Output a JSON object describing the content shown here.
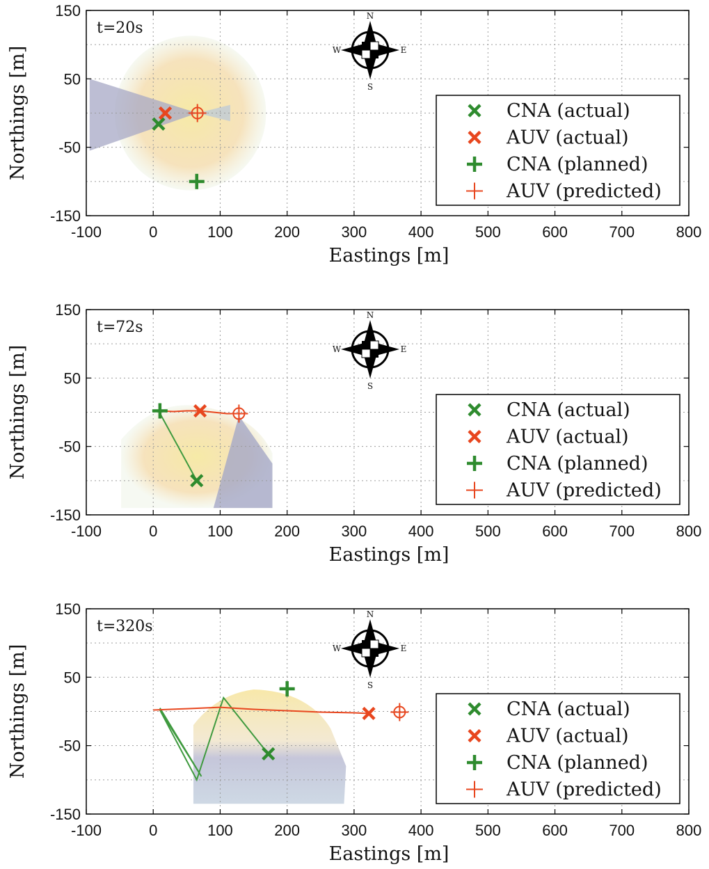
{
  "chart_data": [
    {
      "type": "scatter",
      "time_label": "t=20s",
      "xlabel": "Eastings [m]",
      "ylabel": "Northings [m]",
      "xlim": [
        -100,
        800
      ],
      "ylim": [
        -150,
        150
      ],
      "xticks": [
        -100,
        0,
        100,
        200,
        300,
        400,
        500,
        600,
        700,
        800
      ],
      "yticks": [
        150,
        50,
        -50,
        -150
      ],
      "grid": true,
      "legend_position": "right",
      "compass": {
        "n": "N",
        "s": "S",
        "e": "E",
        "w": "W"
      },
      "cna_path": [],
      "auv_path": [],
      "cna_actual": [
        8,
        -16
      ],
      "auv_actual": [
        18,
        0
      ],
      "cna_planned": [
        65,
        -100
      ],
      "auv_predicted": [
        66,
        0
      ],
      "belief_region": {
        "center": [
          66,
          0
        ],
        "radius": 113,
        "lobe": "forward"
      },
      "series": [
        {
          "name": "CNA (actual)",
          "color": "#2e8b2e",
          "marker": "x"
        },
        {
          "name": "AUV (actual)",
          "color": "#e8461e",
          "marker": "x"
        },
        {
          "name": "CNA (planned)",
          "color": "#2e8b2e",
          "marker": "+"
        },
        {
          "name": "AUV (predicted)",
          "color": "#e8461e",
          "marker": "+"
        }
      ]
    },
    {
      "type": "scatter",
      "time_label": "t=72s",
      "xlabel": "Eastings [m]",
      "ylabel": "Northings [m]",
      "xlim": [
        -100,
        800
      ],
      "ylim": [
        -150,
        150
      ],
      "xticks": [
        -100,
        0,
        100,
        200,
        300,
        400,
        500,
        600,
        700,
        800
      ],
      "yticks": [
        150,
        50,
        -50,
        -150
      ],
      "grid": true,
      "legend_position": "right",
      "compass": {
        "n": "N",
        "s": "S",
        "e": "E",
        "w": "W"
      },
      "cna_path": [
        [
          8,
          2
        ],
        [
          65,
          -100
        ]
      ],
      "auv_path": [
        [
          8,
          2
        ],
        [
          30,
          1
        ],
        [
          50,
          2
        ],
        [
          70,
          2
        ],
        [
          90,
          0
        ],
        [
          110,
          -2
        ],
        [
          128,
          -2
        ]
      ],
      "cna_actual": [
        65,
        -100
      ],
      "auv_actual": [
        70,
        2
      ],
      "cna_planned": [
        10,
        2
      ],
      "auv_predicted": [
        128,
        -2
      ],
      "belief_region": {
        "center": [
          128,
          -2
        ],
        "radius": 170,
        "lobe": "half"
      },
      "series": [
        {
          "name": "CNA (actual)",
          "color": "#2e8b2e",
          "marker": "x"
        },
        {
          "name": "AUV (actual)",
          "color": "#e8461e",
          "marker": "x"
        },
        {
          "name": "CNA (planned)",
          "color": "#2e8b2e",
          "marker": "+"
        },
        {
          "name": "AUV (predicted)",
          "color": "#e8461e",
          "marker": "+"
        }
      ]
    },
    {
      "type": "scatter",
      "time_label": "t=320s",
      "xlabel": "Eastings [m]",
      "ylabel": "Northings [m]",
      "xlim": [
        -100,
        800
      ],
      "ylim": [
        -150,
        150
      ],
      "xticks": [
        -100,
        0,
        100,
        200,
        300,
        400,
        500,
        600,
        700,
        800
      ],
      "yticks": [
        150,
        50,
        -50,
        -150
      ],
      "grid": true,
      "legend_position": "right",
      "compass": {
        "n": "N",
        "s": "S",
        "e": "E",
        "w": "W"
      },
      "cna_path": [
        [
          10,
          5
        ],
        [
          72,
          -95
        ],
        [
          10,
          2
        ],
        [
          65,
          -100
        ],
        [
          105,
          20
        ],
        [
          170,
          -60
        ]
      ],
      "auv_path": [
        [
          0,
          2
        ],
        [
          50,
          4
        ],
        [
          100,
          6
        ],
        [
          150,
          3
        ],
        [
          200,
          1
        ],
        [
          250,
          -1
        ],
        [
          300,
          -2
        ],
        [
          322,
          -3
        ]
      ],
      "cna_actual": [
        172,
        -62
      ],
      "auv_actual": [
        322,
        -3
      ],
      "cna_planned": [
        200,
        33
      ],
      "auv_predicted": [
        368,
        -1
      ],
      "belief_region": {
        "center": [
          170,
          -60
        ],
        "radius": 125,
        "lobe": "blob"
      },
      "series": [
        {
          "name": "CNA (actual)",
          "color": "#2e8b2e",
          "marker": "x"
        },
        {
          "name": "AUV (actual)",
          "color": "#e8461e",
          "marker": "x"
        },
        {
          "name": "CNA (planned)",
          "color": "#2e8b2e",
          "marker": "+"
        },
        {
          "name": "AUV (predicted)",
          "color": "#e8461e",
          "marker": "+"
        }
      ]
    }
  ]
}
